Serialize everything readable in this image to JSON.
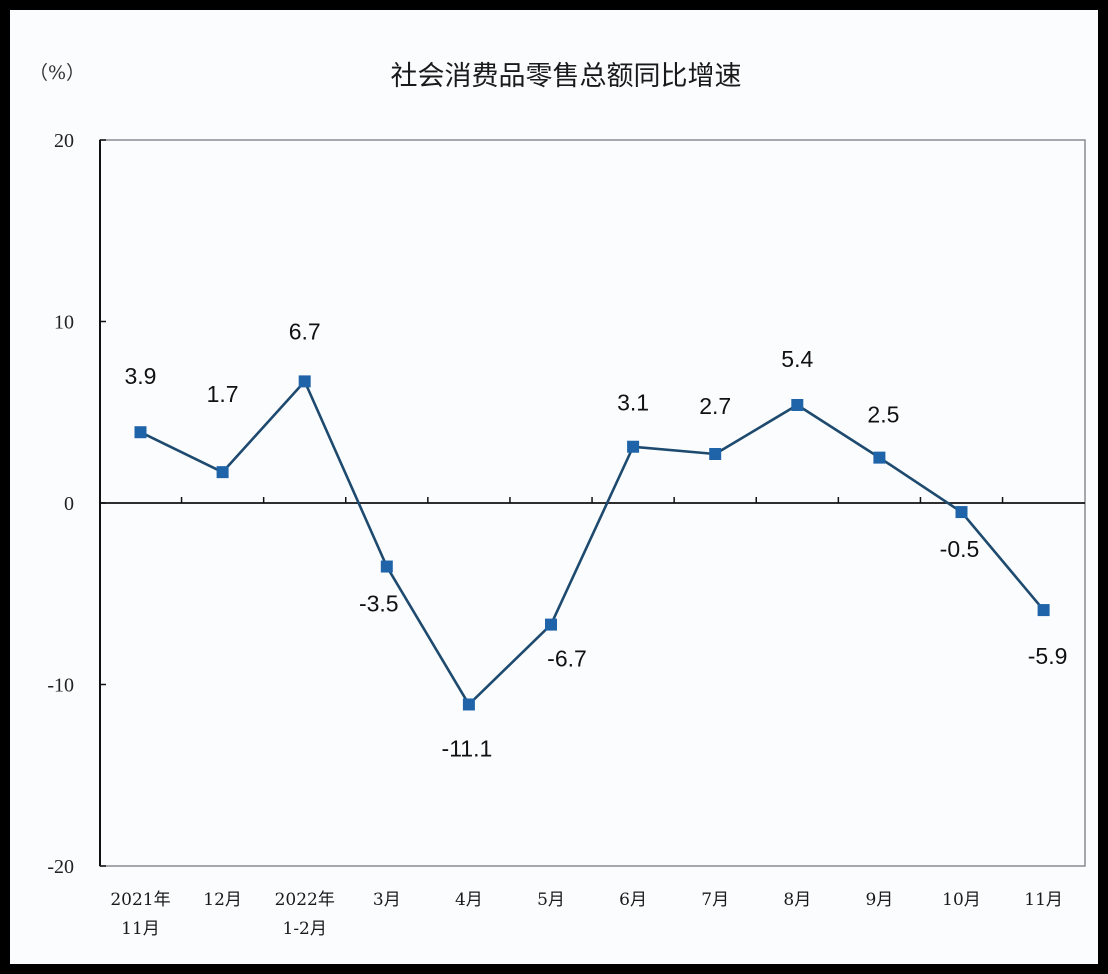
{
  "chart_data": {
    "type": "line",
    "title": "社会消费品零售总额同比增速",
    "ylabel": "（%）",
    "xlabel": "",
    "ylim": [
      -20,
      20
    ],
    "yticks": [
      20,
      10,
      0,
      -10,
      -20
    ],
    "grid": false,
    "legend": null,
    "categories": [
      "2021年11月",
      "12月",
      "2022年1-2月",
      "3月",
      "4月",
      "5月",
      "6月",
      "7月",
      "8月",
      "9月",
      "10月",
      "11月"
    ],
    "category_labels": [
      [
        "2021年",
        "11月"
      ],
      [
        "12月"
      ],
      [
        "2022年",
        "1-2月"
      ],
      [
        "3月"
      ],
      [
        "4月"
      ],
      [
        "5月"
      ],
      [
        "6月"
      ],
      [
        "7月"
      ],
      [
        "8月"
      ],
      [
        "9月"
      ],
      [
        "10月"
      ],
      [
        "11月"
      ]
    ],
    "series": [
      {
        "name": "社会消费品零售总额同比增速",
        "values": [
          3.9,
          1.7,
          6.7,
          -3.5,
          -11.1,
          -6.7,
          3.1,
          2.7,
          5.4,
          2.5,
          -0.5,
          -5.9
        ],
        "labels": [
          "3.9",
          "1.7",
          "6.7",
          "-3.5",
          "-11.1",
          "-6.7",
          "3.1",
          "2.7",
          "5.4",
          "2.5",
          "-0.5",
          "-5.9"
        ]
      }
    ]
  },
  "colors": {
    "line": "#1d4a6e",
    "marker": "#1f64a8",
    "axis": "#111111",
    "frame": "#000000",
    "background": "#fbfcfe"
  }
}
